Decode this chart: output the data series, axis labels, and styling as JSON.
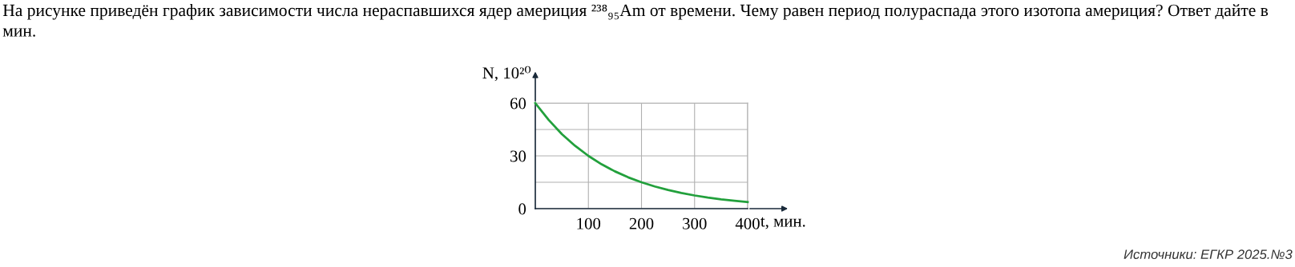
{
  "chart_data": {
    "type": "line",
    "title": "На рисунке приведён график зависимости числа нераспавшихся ядер америция ²³⁸₉₅Am от времени. Чему равен период полураспада этого изотопа америция? Ответ дайте в мин.",
    "xlabel": "t, мин.",
    "ylabel": "N, 10²⁰",
    "x": [
      0,
      25,
      50,
      75,
      100,
      125,
      150,
      175,
      200,
      225,
      250,
      275,
      300,
      325,
      350,
      375,
      400
    ],
    "series": [
      {
        "color": "#22a03c",
        "values": [
          60,
          50.5,
          42.4,
          35.7,
          30,
          25.2,
          21.2,
          17.8,
          15,
          12.6,
          10.6,
          8.9,
          7.5,
          6.3,
          5.3,
          4.5,
          3.8
        ]
      }
    ],
    "xlim": [
      0,
      400
    ],
    "ylim": [
      0,
      60
    ],
    "xticks": [
      100,
      200,
      300,
      400
    ],
    "yticks": [
      0,
      {
        "value": 15,
        "label": null
      },
      30,
      {
        "value": 45,
        "label": null
      },
      60
    ],
    "grid": true,
    "marker": "none",
    "line_style": "solid",
    "annotations": [
      "Источники: ЕГКР 2025.№3"
    ]
  }
}
